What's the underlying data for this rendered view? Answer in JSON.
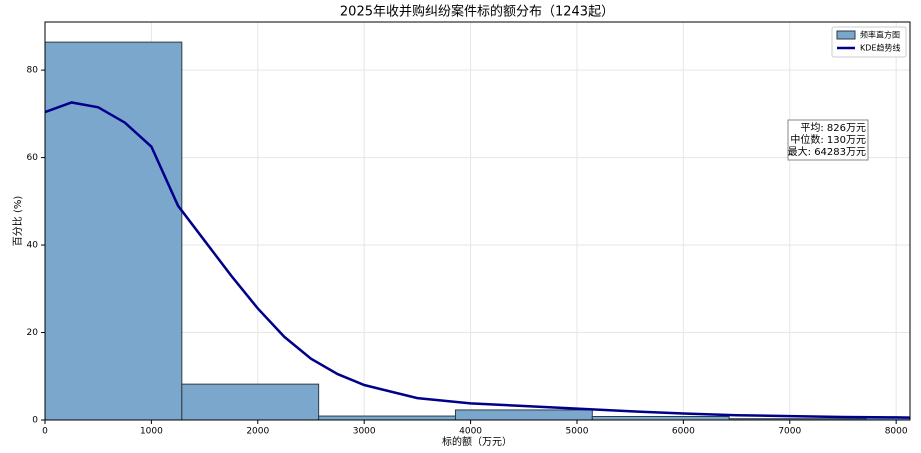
{
  "chart_data": {
    "type": "histogram",
    "title": "2025年收并购纠纷案件标的额分布（1243起）",
    "xlabel": "标的额（万元）",
    "ylabel": "百分比 (%)",
    "histogram": {
      "name": "频率直方图",
      "color": "#7ba7cc",
      "edgecolor": "#2f3b46",
      "bins": [
        0,
        1286,
        2572,
        3858,
        5144,
        6430,
        7716,
        9002
      ],
      "values": [
        86.4,
        8.2,
        0.9,
        2.3,
        0.8,
        0.3,
        0.6
      ]
    },
    "kde": {
      "name": "KDE趋势线",
      "color": "#00008b",
      "x": [
        0,
        250,
        500,
        750,
        1000,
        1250,
        1500,
        1750,
        2000,
        2250,
        2500,
        2750,
        3000,
        3500,
        4000,
        4500,
        5000,
        5500,
        6000,
        6500,
        7000,
        7500,
        8000,
        8130
      ],
      "values": [
        70.4,
        72.6,
        71.5,
        68,
        62.5,
        49,
        41,
        33,
        25.5,
        19,
        14,
        10.5,
        8,
        5,
        3.8,
        3.2,
        2.6,
        2.0,
        1.5,
        1.1,
        0.9,
        0.7,
        0.6,
        0.55
      ]
    },
    "annotation": [
      "平均: 826万元",
      "中位数: 130万元",
      "最大: 64283万元"
    ],
    "xlim": [
      0,
      8130
    ],
    "ylim": [
      0,
      91
    ],
    "xticks": [
      0,
      1000,
      2000,
      3000,
      4000,
      5000,
      6000,
      7000,
      8000
    ],
    "yticks": [
      0,
      20,
      40,
      60,
      80
    ],
    "grid": true,
    "legend": "upper right"
  }
}
